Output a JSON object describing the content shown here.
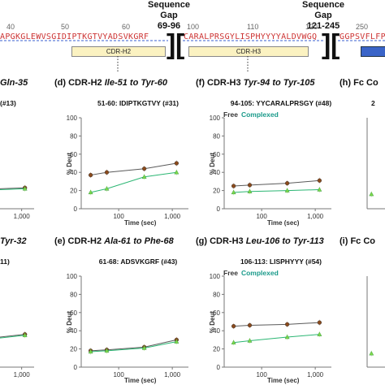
{
  "header": {
    "gap1": {
      "title": "Sequence Gap",
      "range": "69-96"
    },
    "gap2": {
      "title": "Sequence Gap",
      "range": "121-245"
    },
    "ruler": [
      "40",
      "50",
      "60",
      "100",
      "110",
      "120",
      "250"
    ],
    "seq1": "APGKGLEWVSGIDIPTKGTVYADSVKGRF",
    "seq2": "CARALPRSGYLISPHYYYYALDVWGQ",
    "seq3": "GGPSVFLFPP",
    "cdr_h2": "CDR-H2",
    "cdr_h3": "CDR-H3"
  },
  "panel_titles": {
    "left_top": "Gln-35",
    "left_bottom": "Tyr-32",
    "d": {
      "prefix": "(d) CDR-H2",
      "range": "Ile-51 to Tyr-60"
    },
    "f": {
      "prefix": "(f) CDR-H3",
      "range": "Tyr-94 to Tyr-105"
    },
    "h": {
      "prefix": "(h) Fc Co"
    },
    "e": {
      "prefix": "(e) CDR-H2",
      "range": "Ala-61 to Phe-68"
    },
    "g": {
      "prefix": "(g) CDR-H3",
      "range": "Leu-106 to Tyr-113"
    },
    "i": {
      "prefix": "(i) Fc Co"
    }
  },
  "legend": {
    "free": "Free",
    "complexed": "Complexed"
  },
  "axis": {
    "xlabel": "Time (sec)",
    "ylabel": "% Deut"
  },
  "colors": {
    "free": "#5a5a5a",
    "free_marker": "#8b4a1c",
    "complexed": "#2bb673",
    "complexed_marker": "#7cd84a"
  },
  "chart_data": [
    {
      "type": "line",
      "title": "51-60: IDIPTKGTVY (#31)",
      "xlabel": "Time (sec)",
      "ylabel": "% Deut",
      "xscale": "log",
      "xlim": [
        20,
        2000
      ],
      "ylim": [
        0,
        100
      ],
      "yticks": [
        "0",
        "20",
        "40",
        "60",
        "80",
        "100"
      ],
      "xticks": [
        "100",
        "1,000"
      ],
      "series": [
        {
          "name": "Free",
          "x": [
            30,
            60,
            300,
            1200
          ],
          "y": [
            37,
            40,
            44,
            50
          ]
        },
        {
          "name": "Complexed",
          "x": [
            30,
            60,
            300,
            1200
          ],
          "y": [
            18,
            22,
            35,
            40
          ]
        }
      ]
    },
    {
      "type": "line",
      "title": "94-105: YYCARALPRSGY (#48)",
      "xlabel": "Time (sec)",
      "ylabel": "% Deut",
      "xscale": "log",
      "xlim": [
        20,
        2000
      ],
      "ylim": [
        0,
        100
      ],
      "yticks": [
        "0",
        "20",
        "40",
        "60",
        "80",
        "100"
      ],
      "xticks": [
        "100",
        "1,000"
      ],
      "series": [
        {
          "name": "Free",
          "x": [
            30,
            60,
            300,
            1200
          ],
          "y": [
            25,
            26,
            28,
            31
          ]
        },
        {
          "name": "Complexed",
          "x": [
            30,
            60,
            300,
            1200
          ],
          "y": [
            18,
            19,
            20,
            21
          ]
        }
      ]
    },
    {
      "type": "line",
      "title": "61-68: ADSVKGRF (#43)",
      "xlabel": "Time (sec)",
      "ylabel": "% Deut",
      "xscale": "log",
      "xlim": [
        20,
        2000
      ],
      "ylim": [
        0,
        100
      ],
      "yticks": [
        "0",
        "20",
        "40",
        "60",
        "80",
        "100"
      ],
      "xticks": [
        "100",
        "1,000"
      ],
      "series": [
        {
          "name": "Free",
          "x": [
            30,
            60,
            300,
            1200
          ],
          "y": [
            18,
            19,
            22,
            30
          ]
        },
        {
          "name": "Complexed",
          "x": [
            30,
            60,
            300,
            1200
          ],
          "y": [
            17,
            18,
            21,
            28
          ]
        }
      ]
    },
    {
      "type": "line",
      "title": "106-113: LISPHYYY (#54)",
      "xlabel": "Time (sec)",
      "ylabel": "% Deut",
      "xscale": "log",
      "xlim": [
        20,
        2000
      ],
      "ylim": [
        0,
        100
      ],
      "yticks": [
        "0",
        "20",
        "40",
        "60",
        "80",
        "100"
      ],
      "xticks": [
        "100",
        "1,000"
      ],
      "series": [
        {
          "name": "Free",
          "x": [
            30,
            60,
            300,
            1200
          ],
          "y": [
            45,
            46,
            47,
            49
          ]
        },
        {
          "name": "Complexed",
          "x": [
            30,
            60,
            300,
            1200
          ],
          "y": [
            27,
            29,
            33,
            36
          ]
        }
      ]
    },
    {
      "type": "line",
      "title": "(#13)",
      "xscale": "log",
      "xlim": [
        20,
        2000
      ],
      "ylim": [
        0,
        100
      ],
      "xticks": [
        "1,000"
      ],
      "series": [
        {
          "name": "Free",
          "x": [
            300,
            1200
          ],
          "y": [
            22,
            23
          ]
        },
        {
          "name": "Complexed",
          "x": [
            300,
            1200
          ],
          "y": [
            21,
            22
          ]
        }
      ]
    },
    {
      "type": "line",
      "title": "11)",
      "xscale": "log",
      "xlim": [
        20,
        2000
      ],
      "ylim": [
        0,
        100
      ],
      "xticks": [
        "1,000"
      ],
      "series": [
        {
          "name": "Free",
          "x": [
            300,
            1200
          ],
          "y": [
            33,
            36
          ]
        },
        {
          "name": "Complexed",
          "x": [
            300,
            1200
          ],
          "y": [
            32,
            35
          ]
        }
      ]
    },
    {
      "type": "line",
      "title": "2",
      "xscale": "log",
      "xlim": [
        20,
        2000
      ],
      "ylim": [
        0,
        100
      ],
      "series": [
        {
          "name": "Complexed",
          "x": [
            30
          ],
          "y": [
            16
          ]
        }
      ]
    },
    {
      "type": "line",
      "title": "",
      "xscale": "log",
      "xlim": [
        20,
        2000
      ],
      "ylim": [
        0,
        100
      ],
      "series": [
        {
          "name": "Complexed",
          "x": [
            30
          ],
          "y": [
            15
          ]
        }
      ]
    }
  ]
}
